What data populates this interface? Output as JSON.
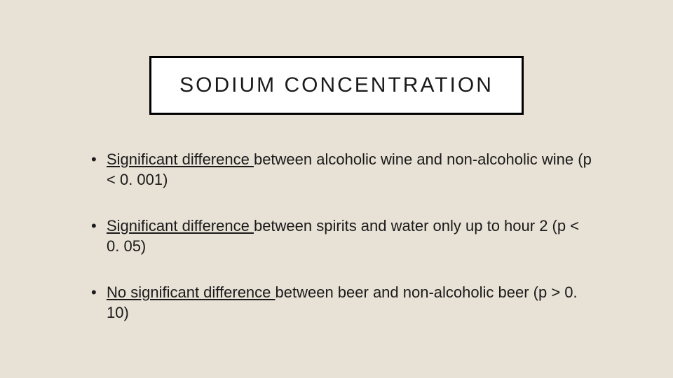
{
  "background_color": "#e8e1d5",
  "title_box": {
    "text": "SODIUM CONCENTRATION",
    "border_color": "#000000",
    "bg_color": "#ffffff",
    "font_size": 30,
    "letter_spacing": 3
  },
  "bullets": [
    {
      "emphasis": "Significant difference ",
      "rest": "between alcoholic wine and non-alcoholic wine (p < 0. 001)"
    },
    {
      "emphasis": "Significant difference ",
      "rest": "between spirits and water only up to hour 2 (p < 0. 05)"
    },
    {
      "emphasis": "No significant difference ",
      "rest": "between beer and non-alcoholic beer (p > 0. 10)"
    }
  ],
  "text_color": "#1a1a1a",
  "bullet_font_size": 22
}
